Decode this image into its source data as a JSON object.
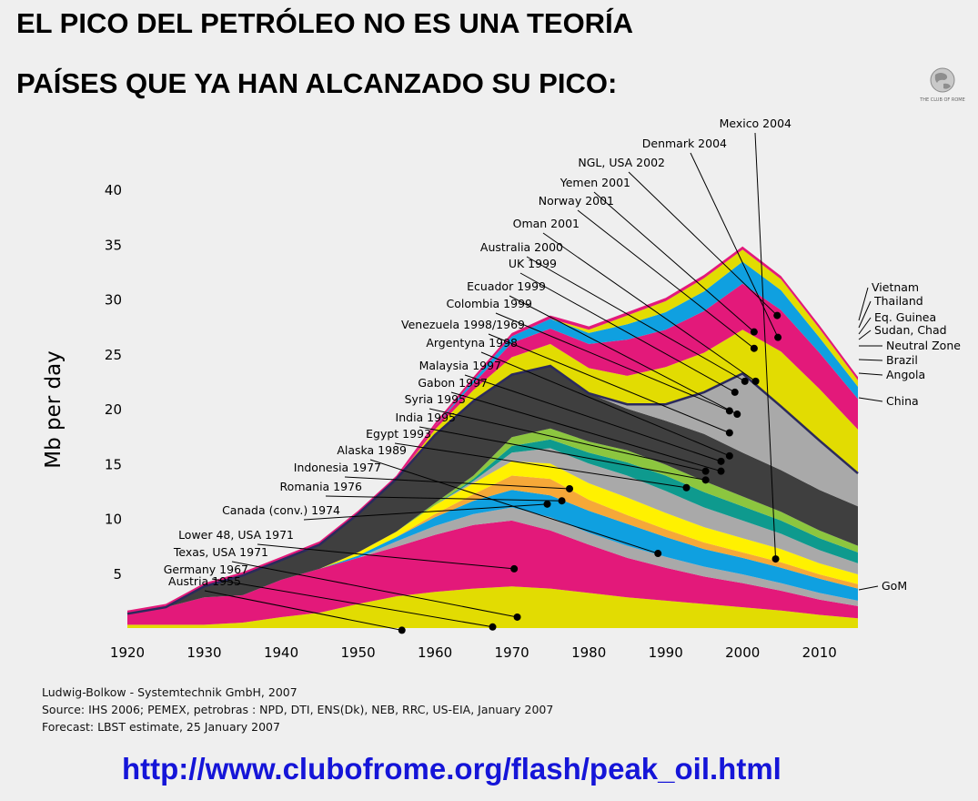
{
  "header": {
    "title_line1": "EL PICO DEL PETRÓLEO NO ES UNA TEORÍA",
    "title_line2": "PAÍSES QUE YA HAN ALCANZADO SU PICO:"
  },
  "logo": {
    "icon": "globe-icon",
    "text": "THE CLUB OF ROME"
  },
  "footer": {
    "credit_line1": "Ludwig-Bolkow - Systemtechnik GmbH, 2007",
    "credit_line2": "Source: IHS 2006; PEMEX, petrobras : NPD, DTI, ENS(Dk), NEB, RRC, US-EIA, January 2007",
    "credit_line3": "Forecast: LBST estimate, 25 January 2007",
    "url": "http://www.clubofrome.org/flash/peak_oil.html"
  },
  "colors": {
    "yellow": "#e2dc02",
    "magenta": "#e3197a",
    "blue": "#0fa0e0",
    "gray": "#a9a9a9",
    "dark": "#3f3f3f",
    "orange": "#f6a838",
    "teal": "#0e9a8e",
    "lime": "#8cc63f",
    "purple": "#7d4f9e",
    "navy": "#2b2a5c",
    "bright_yellow": "#fff100",
    "url": "#1515d8"
  },
  "chart_data": {
    "type": "area",
    "stacked": true,
    "ylabel": "Mb per day",
    "xlabel": "",
    "ylim": [
      0,
      40
    ],
    "xlim": [
      1920,
      2015
    ],
    "y_ticks": [
      5,
      10,
      15,
      20,
      25,
      30,
      35,
      40
    ],
    "x_ticks": [
      1920,
      1930,
      1940,
      1950,
      1960,
      1970,
      1980,
      1990,
      2000,
      2010
    ],
    "x": [
      1920,
      1925,
      1930,
      1935,
      1940,
      1945,
      1950,
      1955,
      1960,
      1965,
      1970,
      1975,
      1980,
      1985,
      1990,
      1995,
      2000,
      2005,
      2010,
      2015
    ],
    "series": [
      {
        "name": "GoM / Austria / Germany",
        "color": "yellow",
        "values": [
          0.3,
          0.3,
          0.3,
          0.5,
          1.0,
          1.4,
          2.2,
          2.9,
          3.3,
          3.6,
          3.8,
          3.6,
          3.2,
          2.8,
          2.5,
          2.2,
          1.9,
          1.6,
          1.2,
          0.9
        ]
      },
      {
        "name": "Texas, USA 1971",
        "color": "magenta",
        "values": [
          1.0,
          1.6,
          2.5,
          2.5,
          3.4,
          4.0,
          4.2,
          4.5,
          5.2,
          5.8,
          6.0,
          5.3,
          4.4,
          3.6,
          3.0,
          2.5,
          2.2,
          1.8,
          1.4,
          1.1
        ]
      },
      {
        "name": "Lower 48, USA 1971",
        "color": "gray",
        "values": [
          0.0,
          0.0,
          0.0,
          0.0,
          0.0,
          0.0,
          0.0,
          0.5,
          0.8,
          1.0,
          1.2,
          1.2,
          1.1,
          1.1,
          1.0,
          0.9,
          0.8,
          0.7,
          0.6,
          0.5
        ]
      },
      {
        "name": "Canada (conv.) 1974",
        "color": "blue",
        "values": [
          0.0,
          0.0,
          0.0,
          0.0,
          0.0,
          0.0,
          0.2,
          0.4,
          0.8,
          1.2,
          1.6,
          2.0,
          2.0,
          2.0,
          1.8,
          1.6,
          1.5,
          1.4,
          1.3,
          1.1
        ]
      },
      {
        "name": "Romania 1976",
        "color": "orange",
        "values": [
          0.0,
          0.0,
          0.0,
          0.0,
          0.0,
          0.0,
          0.0,
          0.0,
          0.3,
          0.6,
          1.3,
          1.5,
          1.0,
          0.8,
          0.7,
          0.6,
          0.5,
          0.5,
          0.4,
          0.4
        ]
      },
      {
        "name": "Indonesia 1977",
        "color": "bright_yellow",
        "values": [
          0.0,
          0.0,
          0.0,
          0.0,
          0.0,
          0.0,
          0.3,
          0.5,
          0.8,
          1.0,
          1.3,
          1.4,
          1.5,
          1.6,
          1.5,
          1.4,
          1.3,
          1.2,
          1.0,
          0.9
        ]
      },
      {
        "name": "Alaska 1989",
        "color": "gray",
        "values": [
          0.0,
          0.0,
          0.0,
          0.0,
          0.0,
          0.0,
          0.0,
          0.0,
          0.0,
          0.2,
          0.8,
          1.4,
          1.8,
          2.0,
          2.0,
          1.8,
          1.6,
          1.4,
          1.2,
          1.0
        ]
      },
      {
        "name": "Egypt / India / Syria",
        "color": "teal",
        "values": [
          0.0,
          0.0,
          0.0,
          0.0,
          0.0,
          0.0,
          0.0,
          0.0,
          0.0,
          0.2,
          0.6,
          0.8,
          1.0,
          1.2,
          1.4,
          1.4,
          1.3,
          1.2,
          1.1,
          1.0
        ]
      },
      {
        "name": "Gabon / Malaysia",
        "color": "lime",
        "values": [
          0.0,
          0.0,
          0.0,
          0.0,
          0.0,
          0.0,
          0.0,
          0.0,
          0.2,
          0.3,
          0.8,
          1.0,
          1.0,
          1.1,
          1.0,
          1.0,
          0.9,
          0.8,
          0.7,
          0.6
        ]
      },
      {
        "name": "Argentyna / Venezuela",
        "color": "dark",
        "values": [
          0.0,
          0.0,
          1.0,
          1.8,
          1.8,
          2.2,
          3.5,
          4.8,
          6.2,
          6.8,
          5.7,
          5.7,
          4.4,
          3.8,
          4.0,
          4.3,
          4.0,
          3.8,
          3.7,
          3.6
        ]
      },
      {
        "name": "Colombia / Ecuador",
        "color": "gray",
        "values": [
          0.0,
          0.0,
          0.0,
          0.0,
          0.0,
          0.0,
          0.0,
          0.0,
          0.0,
          0.0,
          0.0,
          0.0,
          0.0,
          0.4,
          1.5,
          3.8,
          7.2,
          5.8,
          4.5,
          3.0
        ]
      },
      {
        "name": "UK / Australia / Oman",
        "color": "yellow",
        "values": [
          0.0,
          0.0,
          0.0,
          0.0,
          0.0,
          0.0,
          0.0,
          0.0,
          0.5,
          1.0,
          1.6,
          2.0,
          2.3,
          2.6,
          3.4,
          3.6,
          4.0,
          5.0,
          4.7,
          4.0
        ]
      },
      {
        "name": "Norway / Yemen",
        "color": "magenta",
        "values": [
          0.0,
          0.0,
          0.0,
          0.0,
          0.0,
          0.0,
          0.0,
          0.0,
          0.3,
          0.6,
          1.3,
          1.4,
          2.2,
          3.3,
          3.4,
          3.8,
          4.2,
          3.8,
          3.3,
          2.8
        ]
      },
      {
        "name": "NGL, USA / Denmark",
        "color": "blue",
        "values": [
          0.0,
          0.0,
          0.0,
          0.0,
          0.0,
          0.0,
          0.0,
          0.0,
          0.0,
          0.3,
          0.6,
          0.9,
          1.0,
          1.4,
          1.6,
          1.8,
          2.0,
          1.8,
          1.4,
          1.1
        ]
      },
      {
        "name": "Mexico / Angola / Brazil / China",
        "color": "yellow",
        "values": [
          0.0,
          0.0,
          0.0,
          0.0,
          0.0,
          0.0,
          0.0,
          0.0,
          0.0,
          0.0,
          0.0,
          0.0,
          0.3,
          0.8,
          1.0,
          1.2,
          1.1,
          1.0,
          0.8,
          0.6
        ]
      },
      {
        "name": "Neutral Zone / Sudan / Vietnam",
        "color": "magenta",
        "values": [
          0.3,
          0.3,
          0.3,
          0.3,
          0.3,
          0.3,
          0.3,
          0.3,
          0.3,
          0.3,
          0.3,
          0.3,
          0.3,
          0.3,
          0.3,
          0.3,
          0.3,
          0.3,
          0.3,
          0.3
        ]
      }
    ],
    "annotations_left": [
      {
        "label": "Mexico 2004",
        "year": 2004.3,
        "value": 6.3
      },
      {
        "label": "Denmark 2004",
        "year": 2004.6,
        "value": 26.5
      },
      {
        "label": "NGL, USA 2002",
        "year": 2004.5,
        "value": 28.5
      },
      {
        "label": "Yemen 2001",
        "year": 2001.5,
        "value": 27.0
      },
      {
        "label": "Norway 2001",
        "year": 2001.5,
        "value": 25.5
      },
      {
        "label": "Oman 2001",
        "year": 2001.7,
        "value": 22.5
      },
      {
        "label": "Australia 2000",
        "year": 2000.3,
        "value": 22.5
      },
      {
        "label": "UK 1999",
        "year": 1999.0,
        "value": 21.5
      },
      {
        "label": "Ecuador 1999",
        "year": 1999.3,
        "value": 19.5
      },
      {
        "label": "Colombia 1999",
        "year": 1998.3,
        "value": 19.8
      },
      {
        "label": "Venezuela 1998/1969",
        "year": 1998.3,
        "value": 17.8
      },
      {
        "label": "Argentyna 1998",
        "year": 1998.3,
        "value": 15.7
      },
      {
        "label": "Malaysia 1997",
        "year": 1997.2,
        "value": 15.2
      },
      {
        "label": "Gabon 1997",
        "year": 1997.2,
        "value": 14.3
      },
      {
        "label": "Syria 1995",
        "year": 1995.2,
        "value": 14.3
      },
      {
        "label": "India 1995",
        "year": 1995.2,
        "value": 13.5
      },
      {
        "label": "Egypt 1993",
        "year": 1992.7,
        "value": 12.8
      },
      {
        "label": "Alaska 1989",
        "year": 1989.0,
        "value": 6.8
      },
      {
        "label": "Indonesia 1977",
        "year": 1977.5,
        "value": 12.7
      },
      {
        "label": "Romania 1976",
        "year": 1976.5,
        "value": 11.6
      },
      {
        "label": "Canada (conv.) 1974",
        "year": 1974.6,
        "value": 11.3
      },
      {
        "label": "Lower 48, USA 1971",
        "year": 1970.3,
        "value": 5.4
      },
      {
        "label": "Texas, USA 1971",
        "year": 1970.7,
        "value": 1.0
      },
      {
        "label": "Germany 1967",
        "year": 1967.5,
        "value": 0.1
      },
      {
        "label": "Austria 1955",
        "year": 1955.7,
        "value": -0.2
      }
    ],
    "annotations_right": [
      "Vietnam",
      "Thailand",
      "Eq. Guinea",
      "Sudan, Chad",
      "Neutral Zone",
      "Brazil",
      "Angola",
      "China",
      "GoM"
    ]
  }
}
